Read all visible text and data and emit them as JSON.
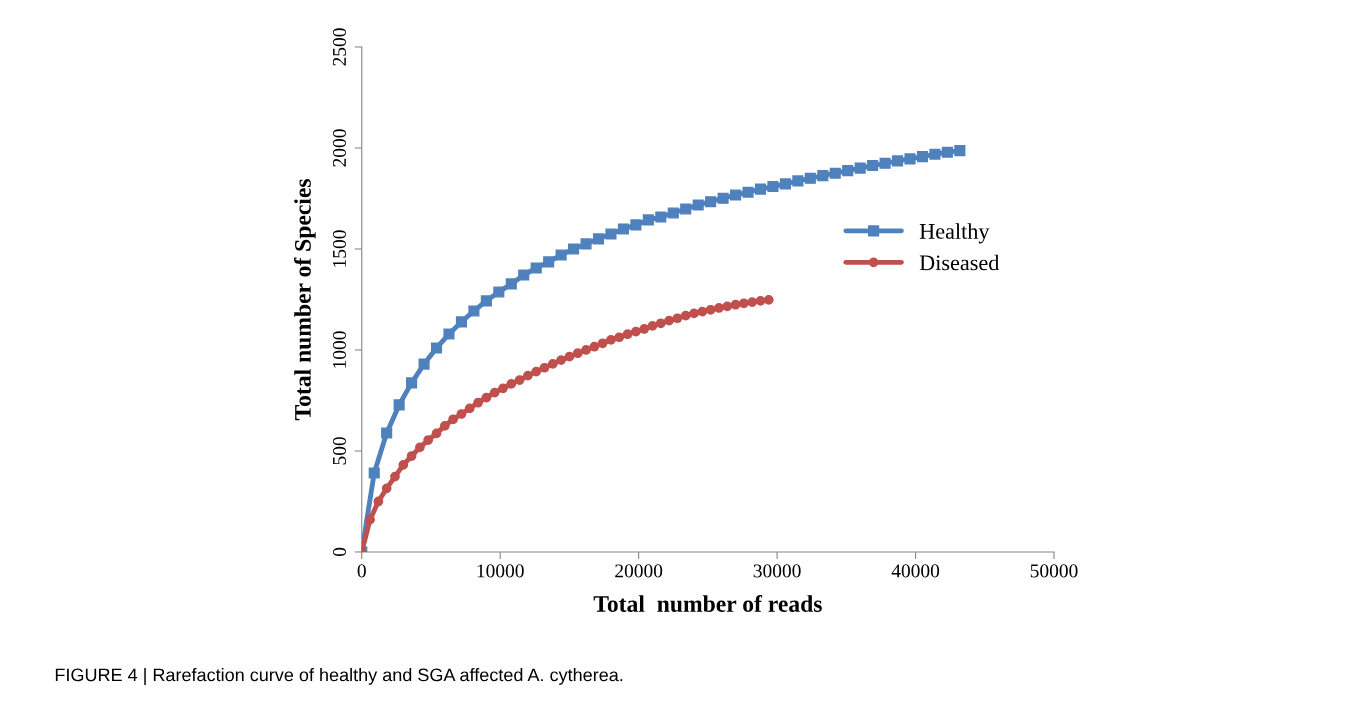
{
  "chart_data": {
    "type": "line",
    "xlabel": "Total  number of reads",
    "ylabel": "Total number of Species",
    "xlim": [
      0,
      50000
    ],
    "xticks": [
      0,
      10000,
      20000,
      30000,
      40000,
      50000
    ],
    "ylim": [
      0,
      2500
    ],
    "yticks": [
      0,
      500,
      1000,
      1500,
      2000,
      2500
    ],
    "grid": false,
    "legend": "right",
    "line_style": "solid",
    "annotations": [
      "FIGURE 4 | Rarefaction curve of healthy and SGA affected A. cytherea."
    ],
    "series": [
      {
        "name": "Healthy",
        "color": "#4f81bd",
        "marker": "square",
        "x": [
          0,
          900,
          1800,
          2700,
          3600,
          4500,
          5400,
          6300,
          7200,
          8100,
          9000,
          9900,
          10800,
          11700,
          12600,
          13500,
          14400,
          15300,
          16200,
          17100,
          18000,
          18900,
          19800,
          20700,
          21600,
          22500,
          23400,
          24300,
          25200,
          26100,
          27000,
          27900,
          28800,
          29700,
          30600,
          31500,
          32400,
          33300,
          34200,
          35100,
          36000,
          36900,
          37800,
          38700,
          39600,
          40500,
          41400,
          42300,
          43200
        ],
        "values": [
          0,
          391,
          589,
          728,
          837,
          930,
          1010,
          1079,
          1139,
          1193,
          1243,
          1287,
          1327,
          1371,
          1406,
          1436,
          1470,
          1500,
          1525,
          1550,
          1574,
          1599,
          1619,
          1644,
          1658,
          1678,
          1698,
          1718,
          1734,
          1751,
          1767,
          1781,
          1796,
          1809,
          1822,
          1837,
          1850,
          1863,
          1875,
          1888,
          1900,
          1913,
          1924,
          1936,
          1946,
          1957,
          1969,
          1979,
          1987
        ]
      },
      {
        "name": "Diseased",
        "color": "#c0504d",
        "marker": "circle",
        "x": [
          0,
          600,
          1200,
          1800,
          2400,
          3000,
          3600,
          4200,
          4800,
          5400,
          6000,
          6600,
          7200,
          7800,
          8400,
          9000,
          9600,
          10200,
          10800,
          11400,
          12000,
          12600,
          13200,
          13800,
          14400,
          15000,
          15600,
          16200,
          16800,
          17400,
          18000,
          18600,
          19200,
          19800,
          20400,
          21000,
          21600,
          22200,
          22800,
          23400,
          24000,
          24600,
          25200,
          25800,
          26400,
          27000,
          27600,
          28200,
          28800,
          29400
        ],
        "values": [
          0,
          160,
          250,
          315,
          373,
          431,
          475,
          518,
          554,
          587,
          624,
          657,
          683,
          711,
          739,
          764,
          789,
          810,
          832,
          851,
          873,
          893,
          912,
          931,
          950,
          967,
          984,
          1000,
          1016,
          1033,
          1050,
          1063,
          1078,
          1091,
          1104,
          1119,
          1132,
          1145,
          1157,
          1170,
          1181,
          1190,
          1199,
          1208,
          1216,
          1224,
          1231,
          1237,
          1243,
          1248
        ]
      }
    ]
  }
}
